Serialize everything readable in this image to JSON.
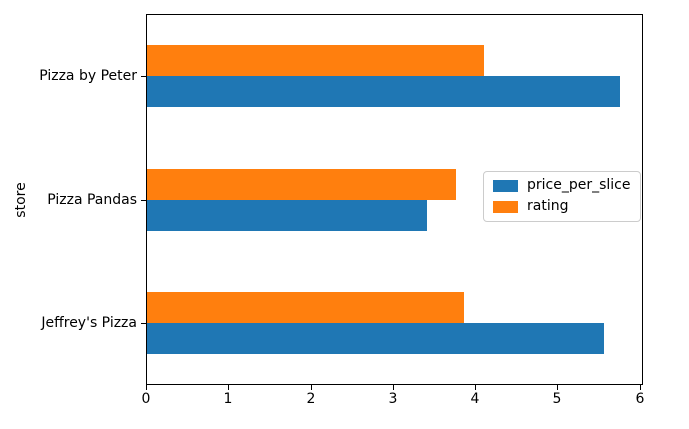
{
  "figure": {
    "background": "#ffffff",
    "text_color": "#000000",
    "spine_color": "#000000"
  },
  "axes": {
    "ylabel": "store",
    "xlabel": ""
  },
  "legend": {
    "border_color": "#cccccc",
    "background": "#ffffff"
  },
  "chart_data": {
    "type": "bar",
    "orientation": "horizontal",
    "title": "",
    "xlabel": "",
    "ylabel": "store",
    "categories": [
      "Pizza by Peter",
      "Pizza Pandas",
      "Jeffrey's Pizza"
    ],
    "series": [
      {
        "name": "price_per_slice",
        "color": "#1f77b4",
        "values": [
          5.75,
          3.4,
          5.55
        ]
      },
      {
        "name": "rating",
        "color": "#ff7f0e",
        "values": [
          4.1,
          3.75,
          3.85
        ]
      }
    ],
    "xlim": [
      0,
      6.04
    ],
    "xticks": [
      0,
      1,
      2,
      3,
      4,
      5,
      6
    ],
    "grid": false,
    "legend_position": "center right",
    "legend_entries": [
      "price_per_slice",
      "rating"
    ]
  }
}
